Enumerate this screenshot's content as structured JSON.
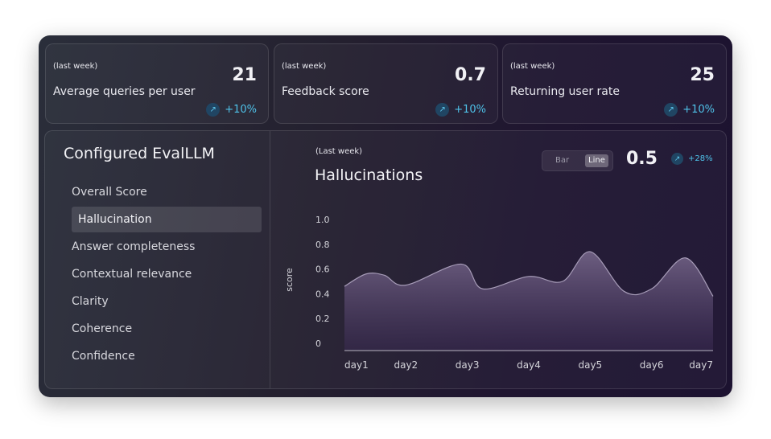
{
  "stats": [
    {
      "period": "(last week)",
      "value": "21",
      "label": "Average queries per user",
      "trend": "+10%",
      "trend_icon": "arrow-up-right-icon"
    },
    {
      "period": "(last week)",
      "value": "0.7",
      "label": "Feedback score",
      "trend": "+10%",
      "trend_icon": "arrow-up-right-icon"
    },
    {
      "period": "(last week)",
      "value": "25",
      "label": "Returning user rate",
      "trend": "+10%",
      "trend_icon": "arrow-up-right-icon"
    }
  ],
  "sidebar": {
    "title": "Configured EvalLLM",
    "items": [
      {
        "label": "Overall Score",
        "active": false
      },
      {
        "label": "Hallucination",
        "active": true
      },
      {
        "label": "Answer completeness",
        "active": false
      },
      {
        "label": "Contextual relevance",
        "active": false
      },
      {
        "label": "Clarity",
        "active": false
      },
      {
        "label": "Coherence",
        "active": false
      },
      {
        "label": "Confidence",
        "active": false
      }
    ]
  },
  "chart_panel": {
    "period": "(Last week)",
    "title": "Hallucinations",
    "toggle": {
      "bar_label": "Bar",
      "line_label": "Line",
      "selected": "Line"
    },
    "value": "0.5",
    "trend": "+28%",
    "trend_icon": "arrow-up-right-icon"
  },
  "colors": {
    "accent": "#4fc3ea",
    "trend_bg": "#204563"
  },
  "chart_data": {
    "type": "area",
    "title": "Hallucinations",
    "ylabel": "score",
    "xlabel": "",
    "categories": [
      "day1",
      "day2",
      "day3",
      "day4",
      "day5",
      "day6",
      "day7"
    ],
    "y_ticks": [
      "1.0",
      "0.8",
      "0.6",
      "0.4",
      "0.2",
      "0"
    ],
    "ylim": [
      0,
      1.0
    ],
    "grid": false,
    "points": [
      {
        "x": 1.0,
        "y": 0.46
      },
      {
        "x": 1.35,
        "y": 0.56
      },
      {
        "x": 1.65,
        "y": 0.55
      },
      {
        "x": 2.0,
        "y": 0.47
      },
      {
        "x": 2.9,
        "y": 0.64
      },
      {
        "x": 3.25,
        "y": 0.44
      },
      {
        "x": 4.0,
        "y": 0.54
      },
      {
        "x": 4.55,
        "y": 0.5
      },
      {
        "x": 5.0,
        "y": 0.74
      },
      {
        "x": 5.55,
        "y": 0.42
      },
      {
        "x": 6.0,
        "y": 0.44
      },
      {
        "x": 6.55,
        "y": 0.69
      },
      {
        "x": 7.0,
        "y": 0.38
      }
    ]
  }
}
